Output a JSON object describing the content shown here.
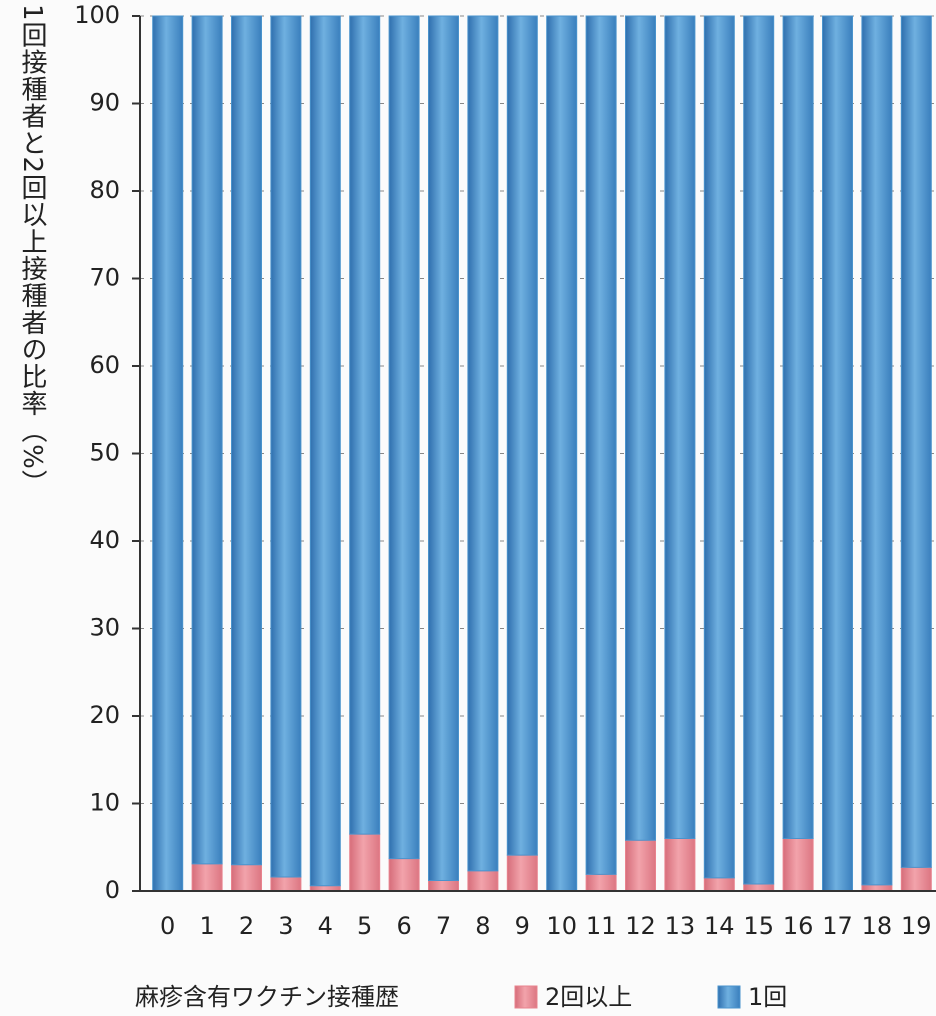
{
  "chart_data": {
    "type": "stacked_bar",
    "y_label": "1回接種者と2回以上接種者の比率（%）",
    "x_label": "麻疹含有ワクチン接種歴",
    "categories": [
      "0",
      "1",
      "2",
      "3",
      "4",
      "5",
      "6",
      "7",
      "8",
      "9",
      "10",
      "11",
      "12",
      "13",
      "14",
      "15",
      "16",
      "17",
      "18",
      "19"
    ],
    "series": [
      {
        "name": "2回以上",
        "color": "#e8838e",
        "values": [
          0,
          3.1,
          3.0,
          1.6,
          0.6,
          6.5,
          3.7,
          1.2,
          2.3,
          4.1,
          0,
          1.9,
          5.8,
          6.0,
          1.5,
          0.8,
          6.0,
          0,
          0.7,
          2.7
        ]
      },
      {
        "name": "1回",
        "color": "#4a93cc",
        "values": [
          100,
          96.9,
          97.0,
          98.4,
          99.4,
          93.5,
          96.3,
          98.8,
          97.7,
          95.9,
          100,
          98.1,
          94.2,
          94.0,
          98.5,
          99.2,
          94.0,
          100,
          99.3,
          97.3
        ]
      }
    ],
    "ylim": [
      0,
      100
    ],
    "yticks": [
      0,
      10,
      20,
      30,
      40,
      50,
      60,
      70,
      80,
      90,
      100
    ],
    "grid": true
  }
}
